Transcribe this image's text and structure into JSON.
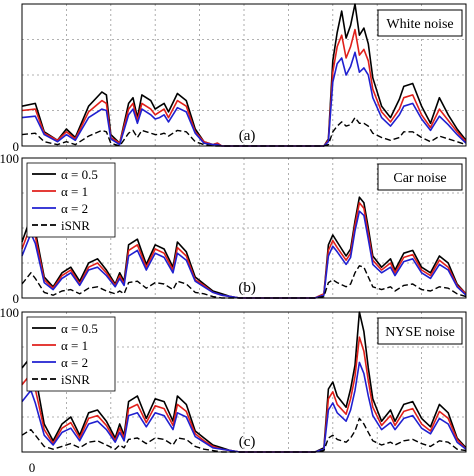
{
  "colors": {
    "alpha_0_5": "#000000",
    "alpha_1": "#e0201b",
    "alpha_2": "#2020d0",
    "isnr": "#000000",
    "grid": "#999999",
    "frame": "#000000"
  },
  "legend": [
    {
      "label": "α = 0.5",
      "color": "#000000",
      "dash": "solid"
    },
    {
      "label": "α = 1",
      "color": "#e0201b",
      "dash": "solid"
    },
    {
      "label": "α = 2",
      "color": "#2020d0",
      "dash": "solid"
    },
    {
      "label": "iSNR",
      "color": "#000000",
      "dash": "dashed"
    }
  ],
  "x_tick_label": "0",
  "chart_data": [
    {
      "type": "line",
      "tag": "(a)",
      "noise_label": "White noise",
      "ylim": [
        0,
        100
      ],
      "yticks": [
        {
          "value": 0,
          "label": "0"
        }
      ],
      "xlim": [
        0,
        100
      ],
      "x": [
        0,
        3,
        5,
        8,
        10,
        12,
        15,
        18,
        19,
        20,
        22,
        24,
        25,
        26,
        27,
        29,
        30,
        31,
        32,
        33,
        35,
        37,
        39,
        41,
        43,
        44,
        45,
        47,
        49,
        51,
        53,
        55,
        57,
        60,
        63,
        66,
        68,
        69,
        70,
        71,
        72,
        73,
        74,
        75,
        76,
        77,
        78,
        79,
        81,
        83,
        85,
        86,
        88,
        90,
        92,
        94,
        96,
        98,
        100
      ],
      "series": [
        {
          "name": "α = 0.5",
          "values": [
            28,
            30,
            10,
            4,
            12,
            6,
            28,
            38,
            36,
            8,
            2,
            30,
            34,
            20,
            36,
            32,
            26,
            28,
            30,
            24,
            37,
            32,
            12,
            3,
            1,
            2,
            0,
            0,
            0,
            0,
            0,
            0,
            0,
            0,
            0,
            0,
            0,
            5,
            60,
            80,
            95,
            76,
            85,
            100,
            78,
            83,
            72,
            48,
            28,
            20,
            33,
            42,
            44,
            28,
            16,
            34,
            22,
            12,
            4
          ]
        },
        {
          "name": "α = 1",
          "values": [
            25,
            26,
            9,
            4,
            10,
            5,
            24,
            32,
            30,
            6,
            2,
            26,
            30,
            18,
            30,
            26,
            22,
            24,
            26,
            20,
            32,
            28,
            10,
            3,
            1,
            2,
            0,
            0,
            0,
            0,
            0,
            0,
            0,
            0,
            0,
            0,
            0,
            4,
            52,
            70,
            78,
            62,
            70,
            82,
            64,
            68,
            60,
            40,
            24,
            17,
            26,
            34,
            36,
            22,
            13,
            26,
            18,
            10,
            3
          ]
        },
        {
          "name": "α = 2",
          "values": [
            20,
            21,
            8,
            3,
            8,
            4,
            20,
            26,
            25,
            5,
            1,
            22,
            26,
            16,
            26,
            22,
            19,
            20,
            22,
            17,
            27,
            24,
            9,
            2,
            1,
            1,
            0,
            0,
            0,
            0,
            0,
            0,
            0,
            0,
            0,
            0,
            0,
            3,
            45,
            58,
            62,
            50,
            56,
            66,
            52,
            55,
            50,
            34,
            20,
            14,
            22,
            28,
            30,
            19,
            11,
            21,
            15,
            8,
            2
          ]
        },
        {
          "name": "iSNR",
          "values": [
            8,
            9,
            3,
            1,
            3,
            1,
            7,
            11,
            10,
            2,
            0,
            9,
            11,
            6,
            11,
            9,
            8,
            8,
            9,
            7,
            11,
            10,
            3,
            1,
            0,
            0,
            0,
            0,
            0,
            0,
            0,
            0,
            0,
            0,
            0,
            0,
            0,
            1,
            10,
            14,
            17,
            14,
            15,
            20,
            16,
            16,
            14,
            9,
            6,
            4,
            6,
            10,
            10,
            6,
            3,
            7,
            5,
            3,
            1
          ]
        }
      ]
    },
    {
      "type": "line",
      "tag": "(b)",
      "noise_label": "Car noise",
      "ylim": [
        0,
        100
      ],
      "yticks": [
        {
          "value": 0,
          "label": "0"
        },
        {
          "value": 100,
          "label": "100"
        }
      ],
      "xlim": [
        0,
        100
      ],
      "x": [
        0,
        2,
        3,
        5,
        7,
        9,
        11,
        13,
        15,
        17,
        19,
        21,
        22,
        23,
        24,
        26,
        28,
        30,
        32,
        34,
        35,
        37,
        39,
        41,
        43,
        45,
        47,
        49,
        51,
        53,
        55,
        58,
        61,
        64,
        66,
        68,
        69,
        70,
        71,
        73,
        74,
        75,
        76,
        77,
        78,
        79,
        81,
        83,
        84,
        86,
        88,
        90,
        92,
        94,
        96,
        98,
        100
      ],
      "series": [
        {
          "name": "α = 0.5",
          "values": [
            40,
            58,
            48,
            15,
            8,
            18,
            22,
            12,
            25,
            28,
            20,
            10,
            18,
            12,
            38,
            42,
            24,
            38,
            35,
            22,
            40,
            33,
            15,
            10,
            5,
            3,
            1,
            0,
            0,
            0,
            0,
            0,
            0,
            0,
            0,
            3,
            38,
            45,
            40,
            30,
            35,
            55,
            72,
            68,
            50,
            30,
            22,
            28,
            20,
            32,
            34,
            22,
            18,
            30,
            25,
            10,
            3
          ]
        },
        {
          "name": "α = 1",
          "values": [
            35,
            52,
            44,
            13,
            7,
            16,
            20,
            10,
            22,
            25,
            18,
            9,
            16,
            10,
            34,
            38,
            22,
            35,
            32,
            20,
            36,
            30,
            13,
            9,
            4,
            2,
            1,
            0,
            0,
            0,
            0,
            0,
            0,
            0,
            0,
            3,
            34,
            41,
            36,
            27,
            32,
            52,
            68,
            64,
            46,
            27,
            20,
            25,
            18,
            29,
            31,
            20,
            16,
            27,
            22,
            9,
            3
          ]
        },
        {
          "name": "α = 2",
          "values": [
            30,
            46,
            39,
            11,
            6,
            14,
            18,
            9,
            20,
            22,
            16,
            8,
            14,
            9,
            30,
            34,
            20,
            32,
            29,
            18,
            32,
            27,
            12,
            8,
            4,
            2,
            1,
            0,
            0,
            0,
            0,
            0,
            0,
            0,
            0,
            2,
            30,
            37,
            33,
            24,
            29,
            48,
            62,
            59,
            42,
            24,
            18,
            22,
            16,
            26,
            28,
            18,
            14,
            24,
            20,
            8,
            2
          ]
        },
        {
          "name": "iSNR",
          "values": [
            10,
            18,
            14,
            4,
            2,
            5,
            6,
            3,
            7,
            8,
            5,
            3,
            5,
            3,
            11,
            12,
            7,
            11,
            10,
            6,
            12,
            10,
            4,
            3,
            1,
            0,
            0,
            0,
            0,
            0,
            0,
            0,
            0,
            0,
            0,
            1,
            11,
            13,
            11,
            8,
            10,
            18,
            23,
            22,
            15,
            8,
            6,
            8,
            5,
            9,
            10,
            6,
            5,
            8,
            7,
            3,
            1
          ]
        }
      ]
    },
    {
      "type": "line",
      "tag": "(c)",
      "noise_label": "NYSE noise",
      "ylim": [
        0,
        100
      ],
      "yticks": [
        {
          "value": 100,
          "label": "100"
        }
      ],
      "xlim": [
        0,
        100
      ],
      "x": [
        0,
        2,
        3,
        5,
        7,
        9,
        11,
        13,
        15,
        17,
        19,
        21,
        22,
        23,
        24,
        26,
        28,
        30,
        32,
        34,
        35,
        37,
        39,
        41,
        43,
        45,
        47,
        49,
        51,
        53,
        55,
        58,
        61,
        64,
        66,
        68,
        69,
        70,
        71,
        73,
        74,
        75,
        76,
        77,
        78,
        79,
        81,
        83,
        84,
        86,
        88,
        90,
        92,
        94,
        96,
        98,
        100
      ],
      "series": [
        {
          "name": "α = 0.5",
          "values": [
            60,
            68,
            55,
            20,
            8,
            20,
            25,
            12,
            28,
            30,
            22,
            10,
            20,
            12,
            36,
            40,
            24,
            38,
            36,
            22,
            40,
            34,
            15,
            10,
            5,
            3,
            1,
            0,
            0,
            0,
            0,
            0,
            0,
            0,
            0,
            3,
            45,
            50,
            40,
            32,
            45,
            62,
            100,
            86,
            60,
            38,
            22,
            30,
            22,
            34,
            36,
            24,
            18,
            34,
            28,
            10,
            3
          ]
        },
        {
          "name": "α = 1",
          "values": [
            48,
            56,
            45,
            16,
            6,
            17,
            21,
            10,
            24,
            26,
            19,
            8,
            17,
            10,
            31,
            34,
            21,
            33,
            31,
            19,
            34,
            29,
            13,
            8,
            4,
            2,
            1,
            0,
            0,
            0,
            0,
            0,
            0,
            0,
            0,
            2,
            38,
            43,
            34,
            27,
            38,
            54,
            82,
            72,
            51,
            32,
            19,
            26,
            19,
            29,
            31,
            20,
            15,
            29,
            24,
            9,
            2
          ]
        },
        {
          "name": "α = 2",
          "values": [
            36,
            44,
            35,
            12,
            5,
            14,
            17,
            8,
            20,
            22,
            16,
            7,
            14,
            8,
            26,
            28,
            18,
            28,
            26,
            16,
            28,
            25,
            11,
            7,
            3,
            2,
            1,
            0,
            0,
            0,
            0,
            0,
            0,
            0,
            0,
            2,
            30,
            35,
            28,
            22,
            30,
            44,
            64,
            56,
            40,
            26,
            16,
            21,
            16,
            24,
            26,
            17,
            13,
            24,
            20,
            7,
            2
          ]
        },
        {
          "name": "iSNR",
          "values": [
            12,
            16,
            12,
            4,
            2,
            4,
            6,
            3,
            7,
            8,
            5,
            2,
            5,
            3,
            9,
            10,
            6,
            10,
            9,
            5,
            10,
            9,
            4,
            2,
            1,
            0,
            0,
            0,
            0,
            0,
            0,
            0,
            0,
            0,
            0,
            1,
            10,
            12,
            9,
            7,
            10,
            15,
            24,
            20,
            14,
            8,
            5,
            7,
            5,
            8,
            9,
            6,
            4,
            8,
            7,
            2,
            1
          ]
        }
      ]
    }
  ]
}
